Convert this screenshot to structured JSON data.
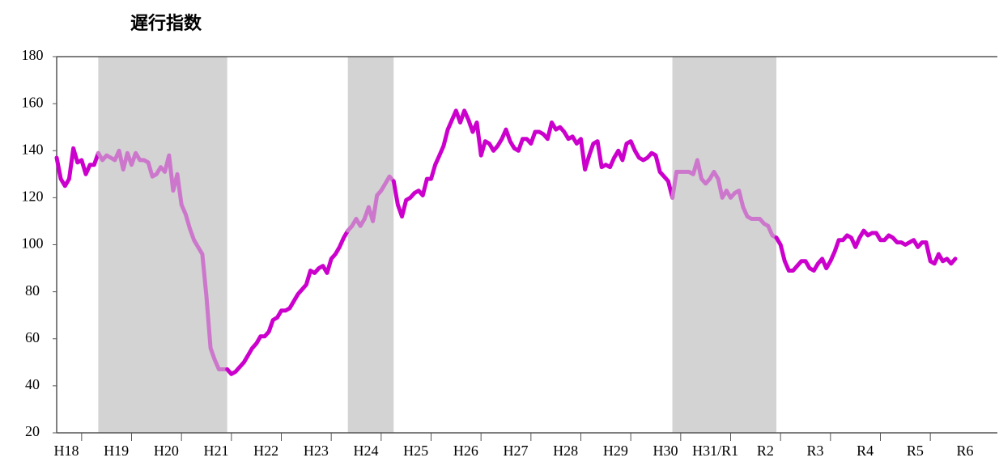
{
  "chart_data": {
    "type": "line",
    "title": "遅行指数",
    "categories": [
      "H18",
      null,
      null,
      null,
      null,
      null,
      null,
      null,
      null,
      null,
      null,
      null,
      "H19",
      null,
      null,
      null,
      null,
      null,
      null,
      null,
      null,
      null,
      null,
      null,
      "H20",
      null,
      null,
      null,
      null,
      null,
      null,
      null,
      null,
      null,
      null,
      null,
      "H21",
      null,
      null,
      null,
      null,
      null,
      null,
      null,
      null,
      null,
      null,
      null,
      "H22",
      null,
      null,
      null,
      null,
      null,
      null,
      null,
      null,
      null,
      null,
      null,
      "H23",
      null,
      null,
      null,
      null,
      null,
      null,
      null,
      null,
      null,
      null,
      null,
      "H24",
      null,
      null,
      null,
      null,
      null,
      null,
      null,
      null,
      null,
      null,
      null,
      "H25",
      null,
      null,
      null,
      null,
      null,
      null,
      null,
      null,
      null,
      null,
      null,
      "H26",
      null,
      null,
      null,
      null,
      null,
      null,
      null,
      null,
      null,
      null,
      null,
      "H27",
      null,
      null,
      null,
      null,
      null,
      null,
      null,
      null,
      null,
      null,
      null,
      "H28",
      null,
      null,
      null,
      null,
      null,
      null,
      null,
      null,
      null,
      null,
      null,
      "H29",
      null,
      null,
      null,
      null,
      null,
      null,
      null,
      null,
      null,
      null,
      null,
      "H30",
      null,
      null,
      null,
      null,
      null,
      null,
      null,
      null,
      null,
      null,
      null,
      "H31/R1",
      null,
      null,
      null,
      null,
      null,
      null,
      null,
      null,
      null,
      null,
      null,
      "R2",
      null,
      null,
      null,
      null,
      null,
      null,
      null,
      null,
      null,
      null,
      null,
      "R3",
      null,
      null,
      null,
      null,
      null,
      null,
      null,
      null,
      null,
      null,
      null,
      "R4",
      null,
      null,
      null,
      null,
      null,
      null,
      null,
      null,
      null,
      null,
      null,
      "R5",
      null,
      null,
      null,
      null,
      null,
      null,
      null,
      null,
      null,
      null,
      null,
      "R6"
    ],
    "values": [
      137,
      128,
      125,
      128,
      141,
      135,
      136,
      130,
      134,
      134,
      139,
      136,
      138,
      137,
      136,
      140,
      132,
      139,
      134,
      139,
      136,
      136,
      135,
      129,
      130,
      133,
      131,
      138,
      123,
      130,
      117,
      113,
      107,
      102,
      99,
      96,
      78,
      56,
      51,
      47,
      47,
      47,
      45,
      46,
      48,
      50,
      53,
      56,
      58,
      61,
      61,
      63,
      68,
      69,
      72,
      72,
      73,
      76,
      79,
      81,
      83,
      89,
      88,
      90,
      91,
      88,
      94,
      96,
      99,
      103,
      106,
      108,
      111,
      108,
      111,
      116,
      110,
      121,
      123,
      126,
      129,
      127,
      117,
      112,
      119,
      120,
      122,
      123,
      121,
      128,
      128,
      134,
      138,
      142,
      149,
      153,
      157,
      152,
      157,
      153,
      148,
      152,
      138,
      144,
      143,
      140,
      142,
      145,
      149,
      144,
      141,
      140,
      145,
      145,
      143,
      148,
      148,
      147,
      145,
      152,
      149,
      150,
      148,
      145,
      146,
      143,
      145,
      132,
      138,
      143,
      144,
      133,
      134,
      133,
      137,
      140,
      136,
      143,
      144,
      140,
      137,
      136,
      137,
      139,
      138,
      131,
      129,
      127,
      120,
      131,
      131,
      131,
      131,
      130,
      136,
      128,
      126,
      128,
      131,
      128,
      120,
      123,
      120,
      122,
      123,
      116,
      112,
      111,
      111,
      111,
      109,
      108,
      104,
      103,
      100,
      93,
      89,
      89,
      91,
      93,
      93,
      90,
      89,
      92,
      94,
      90,
      93,
      97,
      102,
      102,
      104,
      103,
      99,
      103,
      106,
      104,
      105,
      105,
      102,
      102,
      104,
      103,
      101,
      101,
      100,
      101,
      102,
      99,
      101,
      101,
      93,
      92,
      96,
      93,
      94,
      92,
      94
    ],
    "color": "#cc00cc",
    "shaded_line_color": "#cc77cc",
    "shade_color": "#d3d3d3",
    "shaded_periods": [
      [
        10,
        41
      ],
      [
        70,
        81
      ],
      [
        148,
        173
      ]
    ],
    "ylim": [
      20,
      180
    ],
    "yticks": [
      20,
      40,
      60,
      80,
      100,
      120,
      140,
      160,
      180
    ],
    "grid": false
  }
}
